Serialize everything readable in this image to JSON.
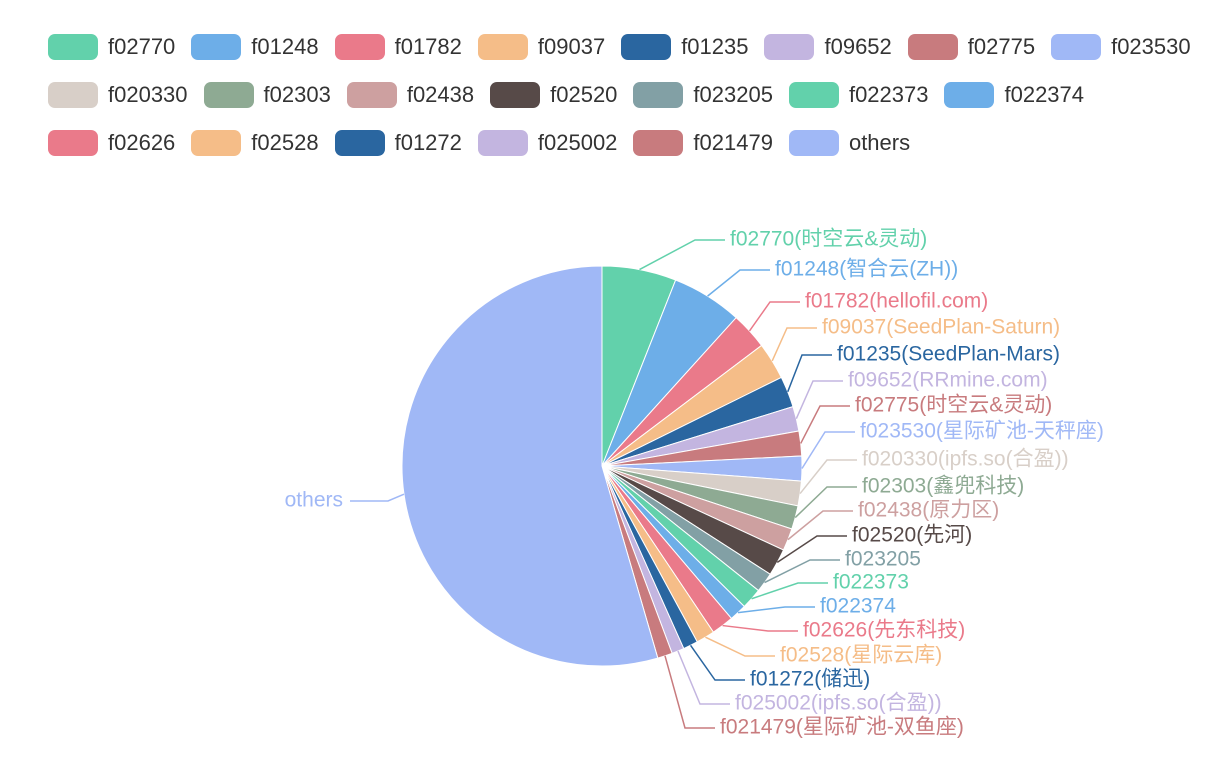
{
  "chart_data": {
    "type": "pie",
    "categories": [
      "f02770",
      "f01248",
      "f01782",
      "f09037",
      "f01235",
      "f09652",
      "f02775",
      "f023530",
      "f020330",
      "f02303",
      "f02438",
      "f02520",
      "f023205",
      "f022373",
      "f022374",
      "f02626",
      "f02528",
      "f01272",
      "f025002",
      "f021479",
      "others"
    ],
    "slice_labels": [
      "f02770(时空云&灵动)",
      "f01248(智合云(ZH))",
      "f01782(hellofil.com)",
      "f09037(SeedPlan-Saturn)",
      "f01235(SeedPlan-Mars)",
      "f09652(RRmine.com)",
      "f02775(时空云&灵动)",
      "f023530(星际矿池-天秤座)",
      "f020330(ipfs.so(合盈))",
      "f02303(鑫兜科技)",
      "f02438(原力区)",
      "f02520(先河)",
      "f023205",
      "f022373",
      "f022374",
      "f02626(先东科技)",
      "f02528(星际云库)",
      "f01272(储迅)",
      "f025002(ipfs.so(合盈))",
      "f021479(星际矿池-双鱼座)",
      "others"
    ],
    "values": [
      6,
      5.7,
      3,
      3,
      2.5,
      2,
      2,
      2,
      2,
      1.9,
      1.8,
      2.2,
      1.6,
      1.7,
      1.4,
      1.8,
      1.5,
      1.2,
      1,
      1.2,
      54.5
    ],
    "colors": [
      "#62d1ab",
      "#6daee8",
      "#ea7a8a",
      "#f5bd88",
      "#2a66a0",
      "#c3b5e0",
      "#c87b7e",
      "#a0b8f6",
      "#d8cfc8",
      "#8eaa93",
      "#cda0a0",
      "#574a48",
      "#82a0a5",
      "#62d1ab",
      "#6daee8",
      "#ea7a8a",
      "#f5bd88",
      "#2a66a0",
      "#c3b5e0",
      "#c87b7e",
      "#a0b8f6"
    ]
  }
}
